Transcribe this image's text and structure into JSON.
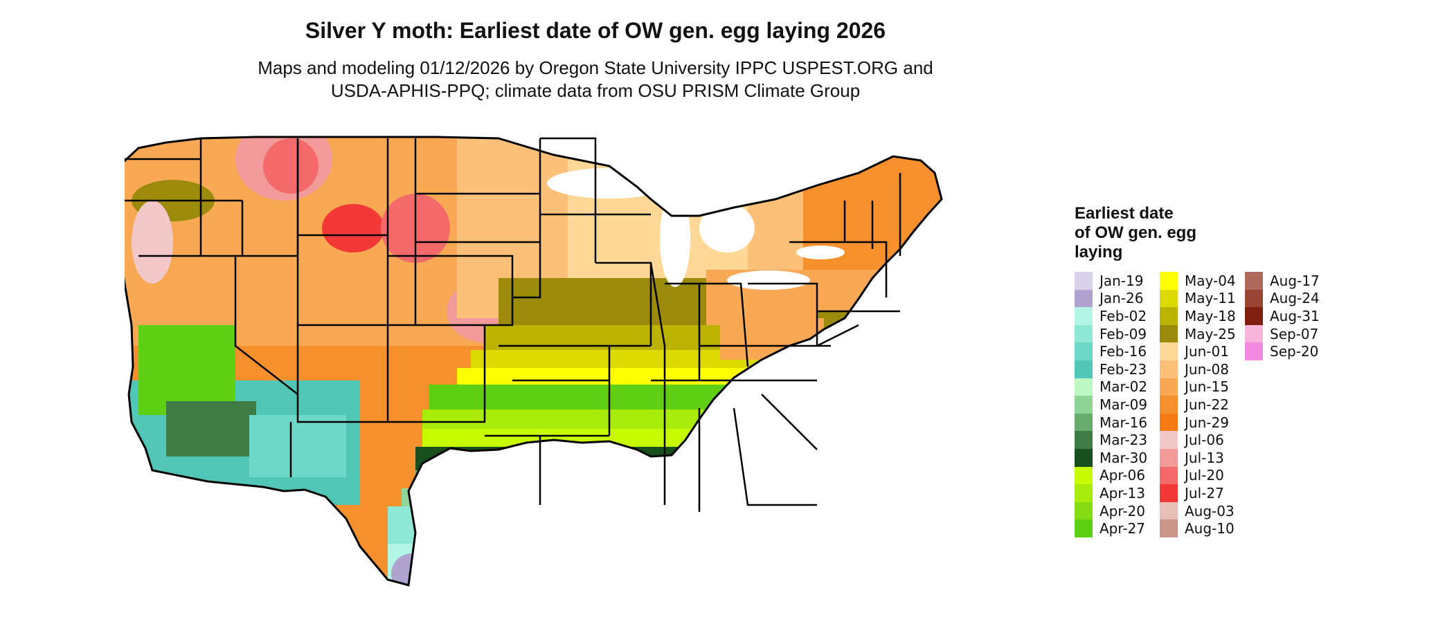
{
  "title": "Silver Y moth: Earliest date of OW gen. egg laying 2026",
  "subtitle_line1": "Maps and modeling 01/12/2026 by Oregon State University IPPC USPEST.ORG and",
  "subtitle_line2": "USDA-APHIS-PPQ; climate data from OSU PRISM Climate Group",
  "legend": {
    "title": "Earliest date\nof OW gen. egg\nlaying",
    "columns": [
      [
        {
          "label": "Jan-19",
          "color": "#d9d2ea"
        },
        {
          "label": "Jan-26",
          "color": "#b1a3cf"
        },
        {
          "label": "Feb-02",
          "color": "#b3f6e6"
        },
        {
          "label": "Feb-09",
          "color": "#8fe8d6"
        },
        {
          "label": "Feb-16",
          "color": "#6ed9c8"
        },
        {
          "label": "Feb-23",
          "color": "#52c6b6"
        },
        {
          "label": "Mar-02",
          "color": "#bdf7c3"
        },
        {
          "label": "Mar-09",
          "color": "#8fd597"
        },
        {
          "label": "Mar-16",
          "color": "#68ad6e"
        },
        {
          "label": "Mar-23",
          "color": "#3e7b45"
        },
        {
          "label": "Mar-30",
          "color": "#184f1d"
        },
        {
          "label": "Apr-06",
          "color": "#c8fa00"
        },
        {
          "label": "Apr-13",
          "color": "#a9ec0c"
        },
        {
          "label": "Apr-20",
          "color": "#86db12"
        },
        {
          "label": "Apr-27",
          "color": "#5fcf14"
        }
      ],
      [
        {
          "label": "May-04",
          "color": "#ffff00"
        },
        {
          "label": "May-11",
          "color": "#dcda00"
        },
        {
          "label": "May-18",
          "color": "#bcb300"
        },
        {
          "label": "May-25",
          "color": "#9c8a0a"
        },
        {
          "label": "Jun-01",
          "color": "#ffd898"
        },
        {
          "label": "Jun-08",
          "color": "#fcc078"
        },
        {
          "label": "Jun-15",
          "color": "#f9a854"
        },
        {
          "label": "Jun-22",
          "color": "#f6902c"
        },
        {
          "label": "Jun-29",
          "color": "#f47b13"
        },
        {
          "label": "Jul-06",
          "color": "#f3c8c8"
        },
        {
          "label": "Jul-13",
          "color": "#f29a9a"
        },
        {
          "label": "Jul-20",
          "color": "#f46a6a"
        },
        {
          "label": "Jul-27",
          "color": "#f43838"
        },
        {
          "label": "Aug-03",
          "color": "#e8c0b8"
        },
        {
          "label": "Aug-10",
          "color": "#cc958a"
        }
      ],
      [
        {
          "label": "Aug-17",
          "color": "#b06a5c"
        },
        {
          "label": "Aug-24",
          "color": "#9a4435"
        },
        {
          "label": "Aug-31",
          "color": "#801e10"
        },
        {
          "label": "Sep-07",
          "color": "#f8b5dc"
        },
        {
          "label": "Sep-20",
          "color": "#f48ae0"
        }
      ]
    ]
  }
}
